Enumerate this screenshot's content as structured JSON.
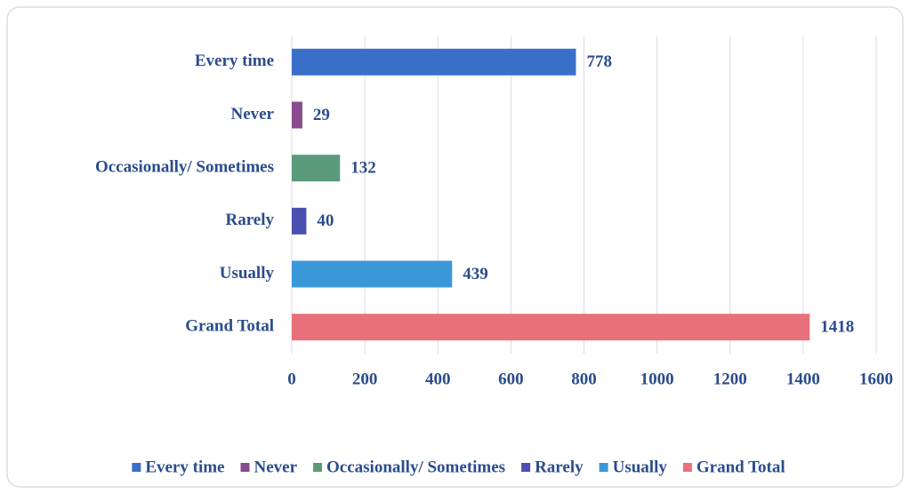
{
  "chart_data": {
    "type": "bar",
    "orientation": "horizontal",
    "categories": [
      "Every time",
      "Never",
      "Occasionally/ Sometimes",
      "Rarely",
      "Usually",
      "Grand Total"
    ],
    "values": [
      778,
      29,
      132,
      40,
      439,
      1418
    ],
    "colors": [
      "#3a6fc9",
      "#8a4a8e",
      "#5b9b7b",
      "#4a4fb0",
      "#3a98d8",
      "#e8707a"
    ],
    "xlim": [
      0,
      1600
    ],
    "xticks": [
      0,
      200,
      400,
      600,
      800,
      1000,
      1200,
      1400,
      1600
    ],
    "grid": true,
    "legend": "bottom"
  }
}
